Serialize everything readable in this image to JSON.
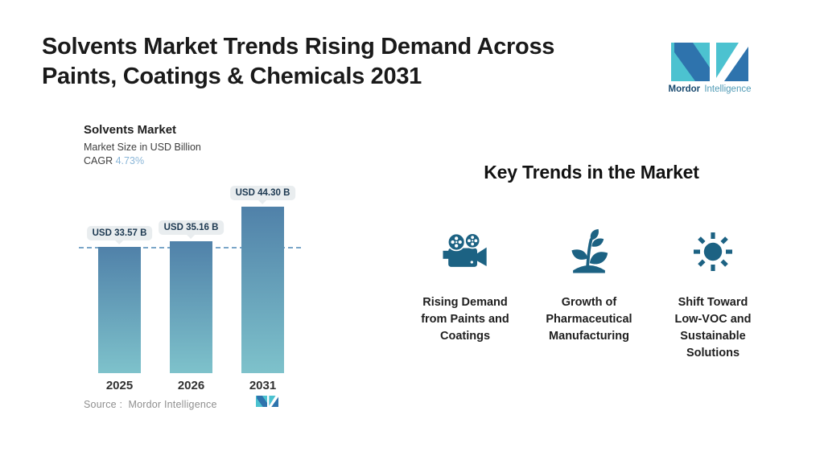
{
  "page": {
    "title_line1": "Solvents Market Trends Rising Demand Across",
    "title_line2": "Paints, Coatings & Chemicals 2031"
  },
  "brand": {
    "name_bold": "Mordor",
    "name_light": "Intelligence"
  },
  "chart": {
    "title": "Solvents Market",
    "subtitle": "Market Size in USD Billion",
    "cagr_label": "CAGR",
    "cagr_value": "4.73%",
    "source": "Source :  Mordor Intelligence"
  },
  "chart_data": {
    "type": "bar",
    "title": "Solvents Market",
    "ylabel": "Market Size in USD Billion",
    "unit": "USD Billion",
    "cagr": "4.73%",
    "categories": [
      "2025",
      "2026",
      "2031"
    ],
    "values": [
      33.57,
      35.16,
      44.3
    ],
    "value_labels": [
      "USD 33.57 B",
      "USD 35.16 B",
      "USD 44.30 B"
    ],
    "ylim": [
      0,
      47
    ],
    "reference_line": 33.57,
    "grid": false,
    "legend": false,
    "source": "Mordor Intelligence"
  },
  "trends": {
    "heading": "Key Trends in the Market",
    "items": [
      {
        "icon": "movie-camera-icon",
        "label": "Rising Demand from Paints and Coatings"
      },
      {
        "icon": "plant-sprout-icon",
        "label": "Growth of Pharmaceutical Manufacturing"
      },
      {
        "icon": "sun-icon",
        "label": "Shift Toward Low-VOC and Sustainable Solutions"
      }
    ]
  },
  "colors": {
    "icon": "#1c6283",
    "logo_teal": "#4cc2d0",
    "logo_blue": "#2e73ad",
    "logo_text_dark": "#17486e",
    "logo_text_light": "#4f9ab5",
    "bar_top": "#5081a9",
    "bar_bottom": "#7ec2cb",
    "dash": "#7aa6c8",
    "badge_bg": "#e9edef",
    "badge_text": "#1c3850",
    "cagr": "#8ab6d8"
  }
}
